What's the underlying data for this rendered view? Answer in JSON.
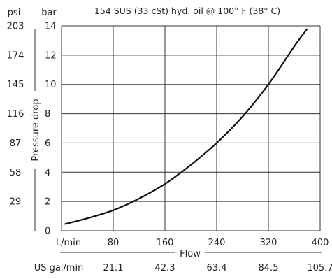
{
  "chart_data": {
    "type": "line",
    "title": "154 SUS (33 cSt) hyd. oil @ 100° F (38° C)",
    "ylabel": "Pressure drop",
    "xlabel": "Flow",
    "x_unit": "L/min",
    "y_unit_left": "psi",
    "y_unit_right": "bar",
    "x_alt_unit": "US gal/min",
    "xlim": [
      0,
      400
    ],
    "ylim": [
      0,
      14
    ],
    "x_ticks": [
      80,
      160,
      240,
      320,
      400
    ],
    "x_tick_labels": [
      "80",
      "160",
      "240",
      "320",
      "400"
    ],
    "x_alt_tick_labels": [
      "21.1",
      "42.3",
      "63.4",
      "84.5",
      "105.7"
    ],
    "y_ticks": [
      0,
      2,
      4,
      6,
      8,
      10,
      12,
      14
    ],
    "y_tick_labels": [
      "0",
      "2",
      "4",
      "6",
      "8",
      "10",
      "12",
      "14"
    ],
    "psi_tick_labels": [
      "29",
      "58",
      "87",
      "116",
      "145",
      "174",
      "203"
    ],
    "psi_tick_positions_bar": [
      2,
      4,
      6,
      8,
      10,
      12,
      14
    ],
    "grid": true,
    "colors": {
      "line": "#111111",
      "grid": "#333333",
      "text": "#222222"
    },
    "series": [
      {
        "x": [
          5,
          40,
          80,
          120,
          160,
          200,
          240,
          280,
          320,
          360,
          380
        ],
        "values": [
          0.45,
          0.85,
          1.4,
          2.2,
          3.2,
          4.5,
          6.0,
          7.8,
          10.0,
          12.6,
          13.8
        ]
      }
    ]
  }
}
